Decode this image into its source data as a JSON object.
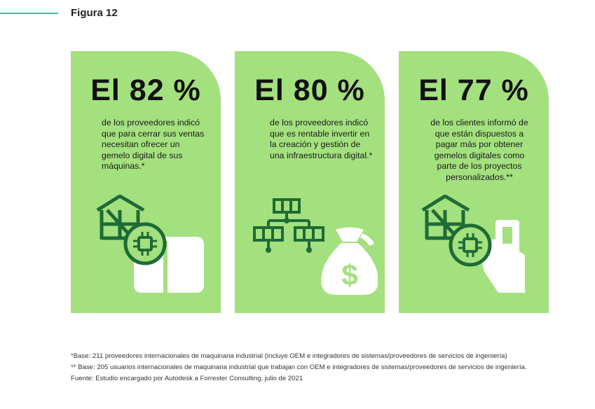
{
  "figure": {
    "title": "Figura 12"
  },
  "cards": [
    {
      "stat": "El 82 %",
      "description": "de los proveedores indicó que para cerrar sus ventas necesitan ofrecer un gemelo digital de sus máquinas.*",
      "icon": "factory-chip-tablet-icon"
    },
    {
      "stat": "El 80 %",
      "description": "de los proveedores indicó que es rentable invertir en la creación y gestión de una infraestructura digital.*",
      "icon": "network-money-bag-icon"
    },
    {
      "stat": "El 77 %",
      "description": "de los clientes informó de que están dispuestos a pagar más por obtener gemelos digitales como parte de los proyectos personalizados.**",
      "icon": "factory-chip-hand-icon"
    }
  ],
  "footnotes": [
    "*Base: 211 proveedores internacionales de maquinaria industrial (incluye OEM e integradores de sistemas/proveedores de servicios de ingeniería)",
    "** Base: 205 usuarios internacionales de maquinaria industrial que trabajan con OEM e integradores de sistemas/proveedores de servicios de ingeniería.",
    "Fuente: Estudio encargado por Autodesk a Forrester Consulting, julio de 2021"
  ],
  "colors": {
    "card": "#a3e07e",
    "icon_dark": "#1e6b36",
    "accent_line": "#3dbf8a"
  }
}
